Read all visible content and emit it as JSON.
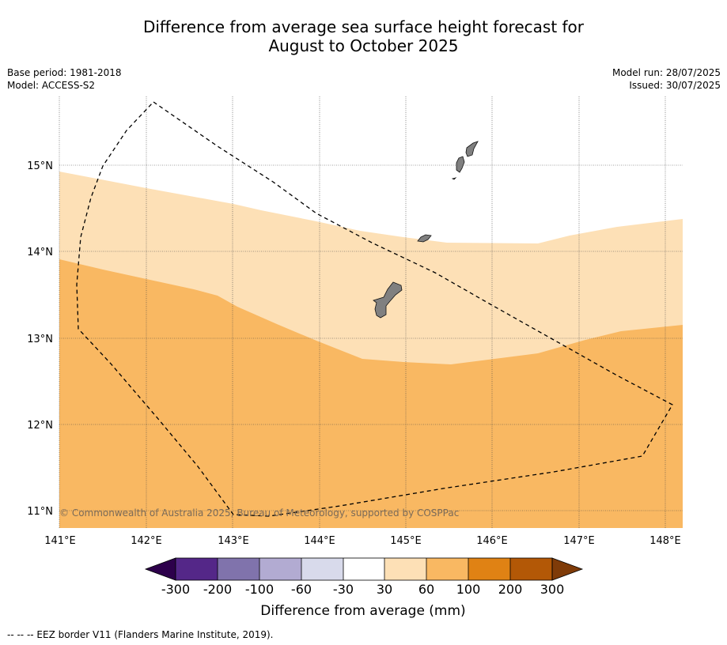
{
  "title_line1": "Difference from average sea surface height forecast for",
  "title_line2": "August to October 2025",
  "meta_left": {
    "base_period": "Base period: 1981-2018",
    "model": "Model: ACCESS-S2"
  },
  "meta_right": {
    "model_run": "Model run: 28/07/2025",
    "issued": "Issued: 30/07/2025"
  },
  "map": {
    "lon_labels": [
      "141°E",
      "142°E",
      "143°E",
      "144°E",
      "145°E",
      "146°E",
      "147°E",
      "148°E"
    ],
    "lat_labels": [
      "15°N",
      "14°N",
      "13°N",
      "12°N",
      "11°N"
    ],
    "regions": [
      {
        "category": "30 to 60",
        "color": "#fde0b6"
      },
      {
        "category": "60 to 100",
        "color": "#f9b862"
      }
    ],
    "land_color": "#808080",
    "copyright": "© Commonwealth of Australia 2025, Bureau of Meteorology, supported by COSPPac"
  },
  "colorbar": {
    "title": "Difference from average (mm)",
    "labels": [
      "-300",
      "-200",
      "-100",
      "-60",
      "-30",
      "30",
      "60",
      "100",
      "200",
      "300"
    ],
    "colors": [
      "#2d004b",
      "#542788",
      "#8073ac",
      "#b2abd2",
      "#d8daeb",
      "#ffffff",
      "#fde0b6",
      "#f9b862",
      "#e08214",
      "#b35806",
      "#7f3b08"
    ]
  },
  "footer": "--  --  -- EEZ border V11 (Flanders Marine Institute, 2019)."
}
